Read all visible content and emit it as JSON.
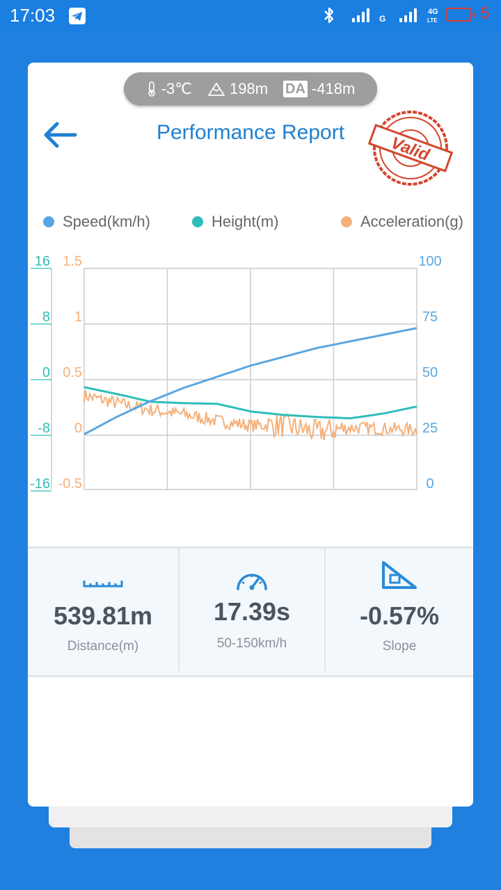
{
  "status_bar": {
    "time": "17:03",
    "battery_level": "5",
    "network_1": "G",
    "network_2_top": "4G",
    "network_2_bottom": "LTE",
    "icons": [
      "telegram-icon",
      "bluetooth-icon",
      "signal-icon",
      "battery-icon"
    ]
  },
  "conditions": {
    "temperature": "-3℃",
    "altitude": "198m",
    "density_altitude_badge": "DA",
    "density_altitude": "-418m"
  },
  "header": {
    "title": "Performance Report",
    "stamp_text": "Valid"
  },
  "colors": {
    "speed": "#5ba6e0",
    "height": "#2ebdb9",
    "acceleration": "#f5b07a",
    "accent": "#1f80d0",
    "background": "#1f80e0",
    "stamp": "#d4452c"
  },
  "chart_data": {
    "type": "line",
    "series": [
      {
        "name": "Speed(km/h)",
        "axis": "right",
        "color": "#5ba6e0",
        "x": [
          0,
          0.1,
          0.2,
          0.3,
          0.4,
          0.5,
          0.6,
          0.7,
          0.8,
          0.9,
          1.0
        ],
        "values": [
          25,
          33,
          40,
          46,
          51,
          56,
          60,
          64,
          67,
          70,
          73
        ]
      },
      {
        "name": "Height(m)",
        "axis": "left_height",
        "color": "#2ebdb9",
        "x": [
          0,
          0.1,
          0.2,
          0.3,
          0.4,
          0.5,
          0.6,
          0.7,
          0.8,
          0.9,
          1.0
        ],
        "values": [
          -1.2,
          -2.2,
          -3.3,
          -3.5,
          -3.6,
          -4.7,
          -5.2,
          -5.5,
          -5.7,
          -5.0,
          -4.0
        ]
      },
      {
        "name": "Acceleration(g)",
        "axis": "left_acceleration",
        "color": "#f5b07a",
        "x": [
          0,
          0.1,
          0.2,
          0.3,
          0.4,
          0.5,
          0.6,
          0.7,
          0.8,
          0.9,
          1.0
        ],
        "values": [
          0.35,
          0.28,
          0.22,
          0.18,
          0.12,
          0.08,
          0.08,
          0.02,
          0.06,
          0.05,
          0.04
        ]
      }
    ],
    "left_axis_height": {
      "ticks": [
        "16",
        "8",
        "0",
        "-8",
        "-16"
      ],
      "range": [
        -16,
        16
      ]
    },
    "left_axis_acceleration": {
      "ticks": [
        "1.5",
        "1",
        "0.5",
        "0",
        "-0.5"
      ],
      "range": [
        -0.5,
        1.5
      ]
    },
    "right_axis_speed": {
      "ticks": [
        "100",
        "75",
        "50",
        "25",
        "0"
      ],
      "range": [
        0,
        100
      ]
    },
    "grid": true,
    "legend_position": "top"
  },
  "stats": [
    {
      "icon": "ruler-icon",
      "value": "539.81m",
      "label": "Distance(m)"
    },
    {
      "icon": "speedometer-icon",
      "value": "17.39s",
      "label": "50-150km/h"
    },
    {
      "icon": "slope-icon",
      "value": "-0.57%",
      "label": "Slope"
    }
  ]
}
